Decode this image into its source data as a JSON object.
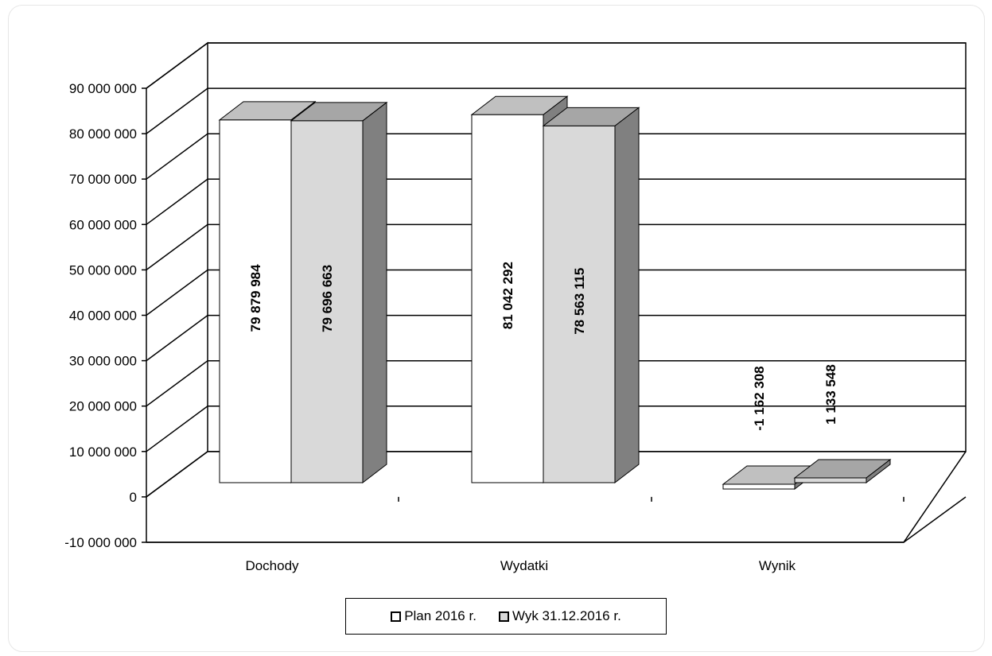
{
  "chart_data": {
    "type": "bar",
    "style": "3d-clustered-column",
    "categories": [
      "Dochody",
      "Wydatki",
      "Wynik"
    ],
    "series": [
      {
        "name": "Plan 2016 r.",
        "values": [
          79879984,
          81042292,
          -1162308
        ],
        "data_labels": [
          "79 879 984",
          "81 042 292",
          "-1 162 308"
        ],
        "color": "#ffffff"
      },
      {
        "name": "Wyk 31.12.2016 r.",
        "values": [
          79696663,
          78563115,
          1133548
        ],
        "data_labels": [
          "79 696 663",
          "78 563 115",
          "1 133 548"
        ],
        "color": "#d9d9d9"
      }
    ],
    "y_ticks": [
      "90 000 000",
      "80 000 000",
      "70 000 000",
      "60 000 000",
      "50 000 000",
      "40 000 000",
      "30 000 000",
      "20 000 000",
      "10 000 000",
      "0",
      "-10 000 000"
    ],
    "ylim": [
      -10000000,
      90000000
    ],
    "grid": true,
    "legend_position": "bottom"
  },
  "legend": {
    "plan_label": "Plan 2016 r.",
    "wyk_label": "Wyk 31.12.2016 r."
  }
}
